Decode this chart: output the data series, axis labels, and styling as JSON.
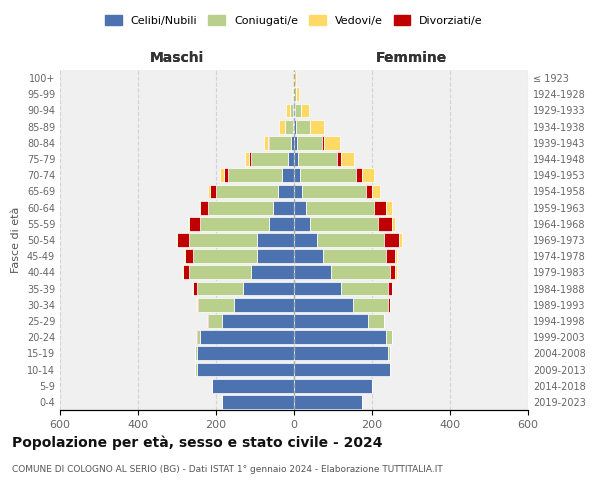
{
  "age_groups": [
    "0-4",
    "5-9",
    "10-14",
    "15-19",
    "20-24",
    "25-29",
    "30-34",
    "35-39",
    "40-44",
    "45-49",
    "50-54",
    "55-59",
    "60-64",
    "65-69",
    "70-74",
    "75-79",
    "80-84",
    "85-89",
    "90-94",
    "95-99",
    "100+"
  ],
  "birth_years": [
    "2019-2023",
    "2014-2018",
    "2009-2013",
    "2004-2008",
    "1999-2003",
    "1994-1998",
    "1989-1993",
    "1984-1988",
    "1979-1983",
    "1974-1978",
    "1969-1973",
    "1964-1968",
    "1959-1963",
    "1954-1958",
    "1949-1953",
    "1944-1948",
    "1939-1943",
    "1934-1938",
    "1929-1933",
    "1924-1928",
    "≤ 1923"
  ],
  "colors": {
    "celibi": "#4c72b0",
    "coniugati": "#b8d08c",
    "vedovi": "#ffd966",
    "divorziati": "#c00000"
  },
  "maschi": {
    "celibi": [
      185,
      210,
      250,
      250,
      240,
      185,
      155,
      130,
      110,
      95,
      95,
      65,
      55,
      40,
      30,
      15,
      8,
      3,
      2,
      1,
      0
    ],
    "coniugati": [
      0,
      1,
      3,
      5,
      10,
      35,
      90,
      120,
      160,
      165,
      175,
      175,
      165,
      160,
      140,
      95,
      55,
      20,
      8,
      2,
      0
    ],
    "vedovi": [
      0,
      0,
      0,
      0,
      0,
      1,
      1,
      1,
      2,
      2,
      2,
      3,
      4,
      5,
      10,
      10,
      12,
      15,
      10,
      3,
      0
    ],
    "divorziati": [
      0,
      0,
      0,
      0,
      1,
      3,
      5,
      10,
      15,
      20,
      30,
      30,
      20,
      15,
      10,
      5,
      3,
      0,
      0,
      0,
      0
    ]
  },
  "femmine": {
    "celibi": [
      175,
      200,
      245,
      240,
      235,
      190,
      150,
      120,
      95,
      75,
      60,
      40,
      30,
      20,
      15,
      10,
      8,
      5,
      2,
      1,
      0
    ],
    "coniugati": [
      0,
      1,
      2,
      5,
      15,
      40,
      90,
      120,
      150,
      160,
      170,
      175,
      175,
      165,
      145,
      100,
      65,
      35,
      15,
      3,
      1
    ],
    "vedovi": [
      0,
      0,
      0,
      0,
      0,
      0,
      1,
      2,
      3,
      5,
      8,
      10,
      15,
      20,
      30,
      35,
      40,
      35,
      20,
      8,
      3
    ],
    "divorziati": [
      0,
      0,
      0,
      0,
      1,
      2,
      5,
      10,
      15,
      25,
      40,
      35,
      30,
      15,
      15,
      10,
      5,
      2,
      1,
      0,
      0
    ]
  },
  "xlim": 600,
  "xticks": [
    -600,
    -400,
    -200,
    0,
    200,
    400,
    600
  ],
  "title": "Popolazione per età, sesso e stato civile - 2024",
  "subtitle": "COMUNE DI COLOGNO AL SERIO (BG) - Dati ISTAT 1° gennaio 2024 - Elaborazione TUTTITALIA.IT",
  "ylabel_left": "Fasce di età",
  "xlabel_maschi": "Maschi",
  "xlabel_femmine": "Femmine",
  "legend_labels": [
    "Celibi/Nubili",
    "Coniugati/e",
    "Vedovi/e",
    "Divorziati/e"
  ],
  "background_color": "#ffffff",
  "plot_bg": "#f0f0f0",
  "bar_height": 0.85,
  "bar_edge_color": "#ffffff",
  "bar_linewidth": 0.5
}
